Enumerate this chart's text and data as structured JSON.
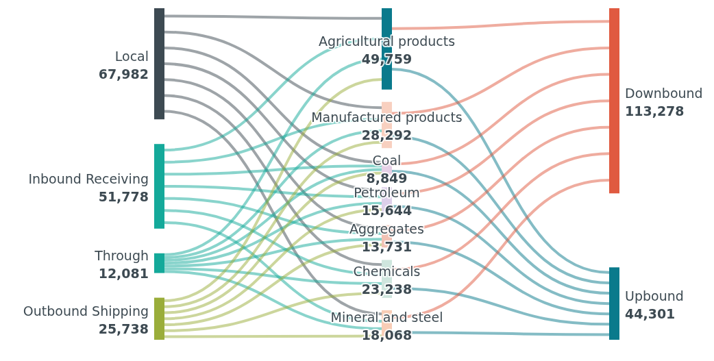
{
  "chart_data": [
    {
      "type": "other",
      "categories": [
        "Local",
        "Inbound Receiving",
        "Through",
        "Outbound Shipping"
      ],
      "values": [
        67982,
        51778,
        12081,
        25738
      ],
      "value_labels": [
        "67,982",
        "51,778",
        "12,081",
        "25,738"
      ],
      "colors": [
        "#3d4a52",
        "#14a99a",
        "#14a99a",
        "#9aad3a"
      ]
    },
    {
      "type": "other",
      "categories": [
        "Agricultural products",
        "Manufactured products",
        "Coal",
        "Petroleum",
        "Aggregates",
        "Chemicals",
        "Mineral and steel"
      ],
      "values": [
        49759,
        28292,
        8849,
        15644,
        13731,
        23238,
        18068
      ],
      "value_labels": [
        "49,759",
        "28,292",
        "8,849",
        "15,644",
        "13,731",
        "23,238",
        "18,068"
      ],
      "colors": [
        "#0a7a8c",
        "#f8d0c0",
        "#e6d0e6",
        "#ddd0ea",
        "#f2c2b4",
        "#cfe6de",
        "#f8cdb6"
      ]
    },
    {
      "type": "other",
      "categories": [
        "Downbound",
        "Upbound"
      ],
      "values": [
        113278,
        44301
      ],
      "value_labels": [
        "113,278",
        "44,301"
      ],
      "colors": [
        "#e05a40",
        "#0a7a8c"
      ]
    }
  ]
}
